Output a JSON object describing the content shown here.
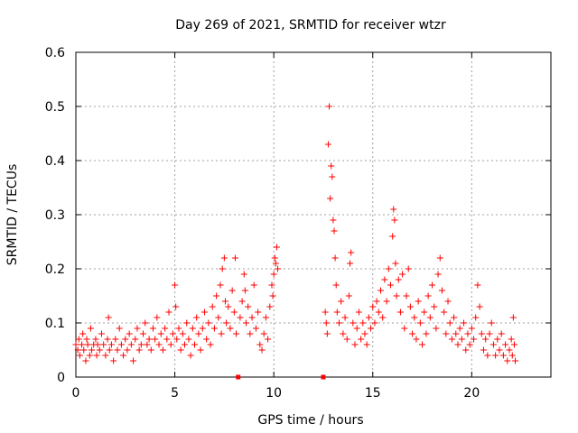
{
  "chart_data": {
    "type": "scatter",
    "title": "Day 269 of 2021, SRMTID for receiver wtzr",
    "xlabel": "GPS time / hours",
    "ylabel": "SRMTID / TECUs",
    "xlim": [
      0,
      24
    ],
    "ylim": [
      0,
      0.6
    ],
    "xticks": [
      0,
      5,
      10,
      15,
      20
    ],
    "yticks": [
      0,
      0.1,
      0.2,
      0.3,
      0.4,
      0.5,
      0.6
    ],
    "xtick_labels": [
      "0",
      "5",
      "10",
      "15",
      "20"
    ],
    "ytick_labels": [
      "0",
      "0.1",
      "0.2",
      "0.3",
      "0.4",
      "0.5",
      "0.6"
    ],
    "grid": true,
    "marker": "+",
    "color": "#ff0000",
    "zero_markers": {
      "marker": "square",
      "x": [
        8.2,
        12.5
      ],
      "y": [
        0,
        0
      ]
    },
    "series": [
      {
        "name": "SRMTID",
        "points": [
          [
            0.0,
            0.06
          ],
          [
            0.1,
            0.05
          ],
          [
            0.15,
            0.07
          ],
          [
            0.2,
            0.04
          ],
          [
            0.3,
            0.06
          ],
          [
            0.35,
            0.08
          ],
          [
            0.4,
            0.05
          ],
          [
            0.5,
            0.03
          ],
          [
            0.55,
            0.07
          ],
          [
            0.6,
            0.06
          ],
          [
            0.7,
            0.04
          ],
          [
            0.75,
            0.09
          ],
          [
            0.8,
            0.05
          ],
          [
            0.9,
            0.06
          ],
          [
            1.0,
            0.07
          ],
          [
            1.05,
            0.04
          ],
          [
            1.1,
            0.06
          ],
          [
            1.2,
            0.05
          ],
          [
            1.3,
            0.08
          ],
          [
            1.4,
            0.06
          ],
          [
            1.5,
            0.04
          ],
          [
            1.6,
            0.07
          ],
          [
            1.65,
            0.11
          ],
          [
            1.7,
            0.05
          ],
          [
            1.8,
            0.06
          ],
          [
            1.9,
            0.03
          ],
          [
            2.0,
            0.07
          ],
          [
            2.1,
            0.05
          ],
          [
            2.2,
            0.09
          ],
          [
            2.3,
            0.06
          ],
          [
            2.4,
            0.04
          ],
          [
            2.5,
            0.07
          ],
          [
            2.6,
            0.05
          ],
          [
            2.7,
            0.08
          ],
          [
            2.8,
            0.06
          ],
          [
            2.9,
            0.03
          ],
          [
            3.0,
            0.07
          ],
          [
            3.1,
            0.09
          ],
          [
            3.2,
            0.05
          ],
          [
            3.3,
            0.06
          ],
          [
            3.4,
            0.08
          ],
          [
            3.5,
            0.1
          ],
          [
            3.6,
            0.06
          ],
          [
            3.7,
            0.07
          ],
          [
            3.8,
            0.05
          ],
          [
            3.9,
            0.09
          ],
          [
            4.0,
            0.07
          ],
          [
            4.1,
            0.11
          ],
          [
            4.2,
            0.06
          ],
          [
            4.3,
            0.08
          ],
          [
            4.4,
            0.05
          ],
          [
            4.5,
            0.09
          ],
          [
            4.6,
            0.07
          ],
          [
            4.7,
            0.12
          ],
          [
            4.8,
            0.06
          ],
          [
            4.9,
            0.08
          ],
          [
            5.0,
            0.17
          ],
          [
            5.05,
            0.13
          ],
          [
            5.1,
            0.07
          ],
          [
            5.2,
            0.09
          ],
          [
            5.3,
            0.05
          ],
          [
            5.4,
            0.08
          ],
          [
            5.5,
            0.06
          ],
          [
            5.6,
            0.1
          ],
          [
            5.7,
            0.07
          ],
          [
            5.8,
            0.04
          ],
          [
            5.9,
            0.09
          ],
          [
            6.0,
            0.06
          ],
          [
            6.1,
            0.11
          ],
          [
            6.2,
            0.08
          ],
          [
            6.3,
            0.05
          ],
          [
            6.4,
            0.09
          ],
          [
            6.5,
            0.12
          ],
          [
            6.6,
            0.07
          ],
          [
            6.7,
            0.1
          ],
          [
            6.8,
            0.06
          ],
          [
            6.9,
            0.13
          ],
          [
            7.0,
            0.09
          ],
          [
            7.1,
            0.15
          ],
          [
            7.2,
            0.11
          ],
          [
            7.3,
            0.17
          ],
          [
            7.35,
            0.08
          ],
          [
            7.4,
            0.2
          ],
          [
            7.5,
            0.22
          ],
          [
            7.55,
            0.14
          ],
          [
            7.6,
            0.1
          ],
          [
            7.7,
            0.13
          ],
          [
            7.8,
            0.09
          ],
          [
            7.9,
            0.16
          ],
          [
            8.0,
            0.12
          ],
          [
            8.05,
            0.22
          ],
          [
            8.1,
            0.08
          ],
          [
            8.3,
            0.11
          ],
          [
            8.4,
            0.14
          ],
          [
            8.5,
            0.19
          ],
          [
            8.55,
            0.16
          ],
          [
            8.6,
            0.1
          ],
          [
            8.7,
            0.13
          ],
          [
            8.8,
            0.08
          ],
          [
            8.9,
            0.11
          ],
          [
            9.0,
            0.17
          ],
          [
            9.1,
            0.09
          ],
          [
            9.2,
            0.12
          ],
          [
            9.3,
            0.06
          ],
          [
            9.4,
            0.05
          ],
          [
            9.5,
            0.08
          ],
          [
            9.6,
            0.11
          ],
          [
            9.7,
            0.07
          ],
          [
            9.8,
            0.13
          ],
          [
            9.9,
            0.17
          ],
          [
            9.95,
            0.15
          ],
          [
            10.0,
            0.19
          ],
          [
            10.05,
            0.22
          ],
          [
            10.1,
            0.21
          ],
          [
            10.15,
            0.24
          ],
          [
            10.2,
            0.2
          ],
          [
            12.6,
            0.12
          ],
          [
            12.65,
            0.1
          ],
          [
            12.7,
            0.08
          ],
          [
            12.75,
            0.43
          ],
          [
            12.8,
            0.5
          ],
          [
            12.85,
            0.33
          ],
          [
            12.9,
            0.39
          ],
          [
            12.95,
            0.37
          ],
          [
            13.0,
            0.29
          ],
          [
            13.05,
            0.27
          ],
          [
            13.1,
            0.22
          ],
          [
            13.15,
            0.17
          ],
          [
            13.2,
            0.12
          ],
          [
            13.3,
            0.1
          ],
          [
            13.4,
            0.14
          ],
          [
            13.5,
            0.08
          ],
          [
            13.6,
            0.11
          ],
          [
            13.7,
            0.07
          ],
          [
            13.8,
            0.15
          ],
          [
            13.85,
            0.21
          ],
          [
            13.9,
            0.23
          ],
          [
            14.0,
            0.1
          ],
          [
            14.1,
            0.06
          ],
          [
            14.2,
            0.09
          ],
          [
            14.3,
            0.12
          ],
          [
            14.4,
            0.07
          ],
          [
            14.5,
            0.1
          ],
          [
            14.6,
            0.08
          ],
          [
            14.7,
            0.06
          ],
          [
            14.8,
            0.11
          ],
          [
            14.9,
            0.09
          ],
          [
            15.0,
            0.13
          ],
          [
            15.1,
            0.1
          ],
          [
            15.2,
            0.14
          ],
          [
            15.3,
            0.12
          ],
          [
            15.4,
            0.16
          ],
          [
            15.5,
            0.11
          ],
          [
            15.6,
            0.18
          ],
          [
            15.7,
            0.14
          ],
          [
            15.8,
            0.2
          ],
          [
            15.9,
            0.17
          ],
          [
            16.0,
            0.26
          ],
          [
            16.05,
            0.31
          ],
          [
            16.1,
            0.29
          ],
          [
            16.15,
            0.21
          ],
          [
            16.2,
            0.15
          ],
          [
            16.3,
            0.18
          ],
          [
            16.4,
            0.12
          ],
          [
            16.5,
            0.19
          ],
          [
            16.6,
            0.09
          ],
          [
            16.7,
            0.15
          ],
          [
            16.8,
            0.2
          ],
          [
            16.9,
            0.13
          ],
          [
            17.0,
            0.08
          ],
          [
            17.1,
            0.11
          ],
          [
            17.2,
            0.07
          ],
          [
            17.3,
            0.14
          ],
          [
            17.4,
            0.1
          ],
          [
            17.5,
            0.06
          ],
          [
            17.6,
            0.12
          ],
          [
            17.7,
            0.08
          ],
          [
            17.8,
            0.15
          ],
          [
            17.9,
            0.11
          ],
          [
            18.0,
            0.17
          ],
          [
            18.1,
            0.13
          ],
          [
            18.2,
            0.09
          ],
          [
            18.3,
            0.19
          ],
          [
            18.4,
            0.22
          ],
          [
            18.5,
            0.16
          ],
          [
            18.6,
            0.12
          ],
          [
            18.7,
            0.08
          ],
          [
            18.8,
            0.14
          ],
          [
            18.9,
            0.1
          ],
          [
            19.0,
            0.07
          ],
          [
            19.1,
            0.11
          ],
          [
            19.2,
            0.08
          ],
          [
            19.3,
            0.06
          ],
          [
            19.4,
            0.09
          ],
          [
            19.5,
            0.07
          ],
          [
            19.6,
            0.1
          ],
          [
            19.7,
            0.05
          ],
          [
            19.8,
            0.08
          ],
          [
            19.9,
            0.06
          ],
          [
            20.0,
            0.09
          ],
          [
            20.1,
            0.07
          ],
          [
            20.2,
            0.11
          ],
          [
            20.3,
            0.17
          ],
          [
            20.4,
            0.13
          ],
          [
            20.5,
            0.08
          ],
          [
            20.6,
            0.05
          ],
          [
            20.7,
            0.07
          ],
          [
            20.8,
            0.04
          ],
          [
            20.9,
            0.08
          ],
          [
            21.0,
            0.1
          ],
          [
            21.1,
            0.06
          ],
          [
            21.2,
            0.04
          ],
          [
            21.3,
            0.07
          ],
          [
            21.4,
            0.05
          ],
          [
            21.5,
            0.08
          ],
          [
            21.6,
            0.04
          ],
          [
            21.7,
            0.06
          ],
          [
            21.8,
            0.03
          ],
          [
            21.9,
            0.05
          ],
          [
            22.0,
            0.07
          ],
          [
            22.05,
            0.04
          ],
          [
            22.1,
            0.11
          ],
          [
            22.15,
            0.06
          ],
          [
            22.2,
            0.03
          ]
        ]
      }
    ]
  }
}
